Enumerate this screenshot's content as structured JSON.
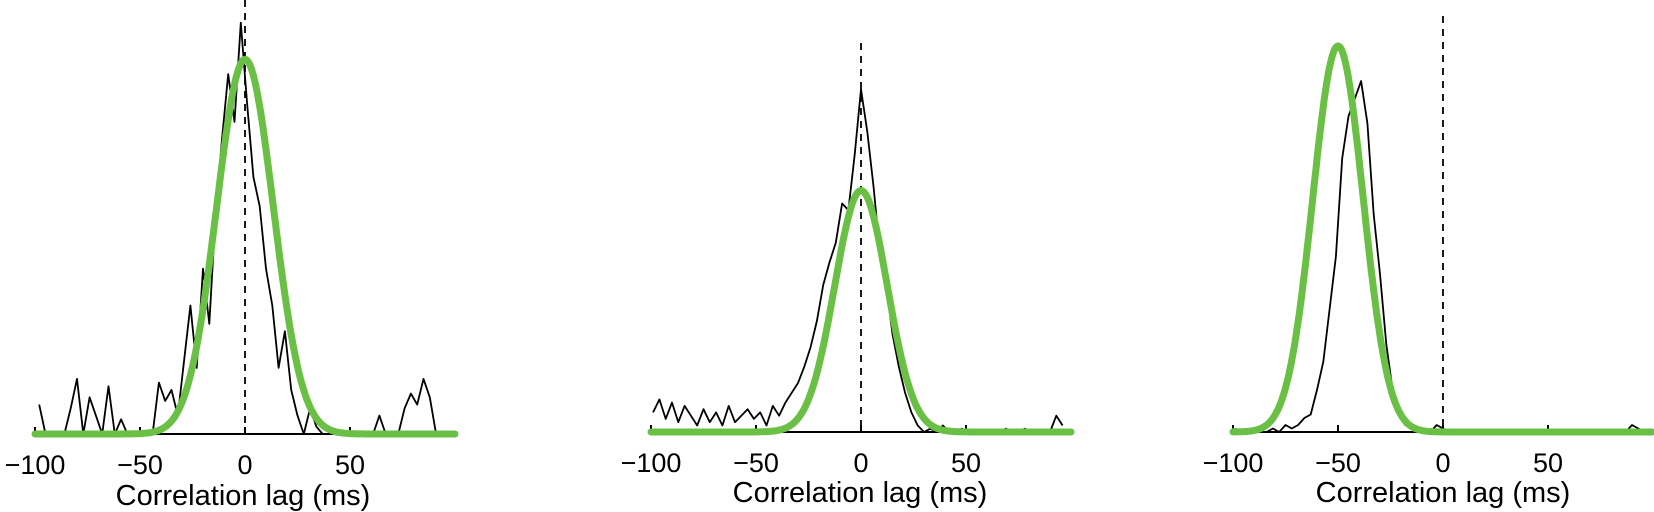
{
  "colors": {
    "histogram": "#000000",
    "fit": "#6abf45",
    "axis": "#000000",
    "zero_line": "#000000"
  },
  "chart_data": [
    {
      "type": "line",
      "title": "",
      "xlabel": "Correlation lag (ms)",
      "ylabel": "",
      "xlim": [
        -100,
        100
      ],
      "xticks": [
        -100,
        -50,
        0,
        50
      ],
      "xtick_labels": [
        "−100",
        "−50",
        "0",
        "50"
      ],
      "ylim": [
        0,
        1.1
      ],
      "zero_line": true,
      "series": [
        {
          "kind": "histogram",
          "x": [
            -98,
            -95,
            -92,
            -89,
            -86,
            -83,
            -80,
            -77,
            -74,
            -71,
            -68,
            -65,
            -62,
            -59,
            -56,
            -53,
            -50,
            -47,
            -44,
            -41,
            -38,
            -35,
            -32,
            -29,
            -26,
            -23,
            -20,
            -17,
            -14,
            -11,
            -8,
            -5,
            -2,
            1,
            4,
            7,
            10,
            13,
            16,
            19,
            22,
            25,
            28,
            31,
            34,
            37,
            40,
            43,
            46,
            49,
            52,
            55,
            58,
            61,
            64,
            67,
            70,
            73,
            76,
            79,
            82,
            85,
            88,
            91,
            94
          ],
          "values": [
            0.08,
            0.0,
            0.0,
            0.0,
            0.0,
            0.07,
            0.15,
            0.0,
            0.1,
            0.05,
            0.0,
            0.13,
            0.0,
            0.04,
            0.0,
            0.0,
            0.0,
            0.0,
            0.0,
            0.14,
            0.09,
            0.12,
            0.05,
            0.2,
            0.35,
            0.18,
            0.45,
            0.3,
            0.6,
            0.8,
            0.98,
            0.85,
            1.12,
            0.9,
            0.7,
            0.62,
            0.45,
            0.35,
            0.18,
            0.28,
            0.12,
            0.05,
            0.0,
            0.07,
            0.02,
            0.0,
            0.0,
            0.0,
            0.0,
            0.0,
            0.0,
            0.0,
            0.0,
            0.0,
            0.05,
            0.0,
            0.0,
            0.0,
            0.07,
            0.11,
            0.08,
            0.15,
            0.1,
            0.0,
            0.0
          ]
        },
        {
          "kind": "gaussian_fit",
          "mean": 0,
          "sd": 13.5,
          "amplitude": 1.02
        }
      ]
    },
    {
      "type": "line",
      "title": "",
      "xlabel": "Correlation lag (ms)",
      "ylabel": "",
      "xlim": [
        -100,
        100
      ],
      "xticks": [
        -100,
        -50,
        0,
        50
      ],
      "xtick_labels": [
        "−100",
        "−50",
        "0",
        "50"
      ],
      "ylim": [
        0,
        1.1
      ],
      "zero_line": true,
      "series": [
        {
          "kind": "histogram",
          "x": [
            -99,
            -96,
            -93,
            -90,
            -87,
            -84,
            -81,
            -78,
            -75,
            -72,
            -69,
            -66,
            -63,
            -60,
            -57,
            -54,
            -51,
            -48,
            -45,
            -42,
            -39,
            -36,
            -33,
            -30,
            -27,
            -24,
            -21,
            -18,
            -15,
            -12,
            -9,
            -6,
            -3,
            0,
            3,
            6,
            9,
            12,
            15,
            18,
            21,
            24,
            27,
            30,
            33,
            36,
            39,
            42,
            45,
            48,
            51,
            54,
            57,
            60,
            63,
            66,
            69,
            72,
            75,
            78,
            81,
            84,
            87,
            90,
            93,
            96
          ],
          "values": [
            0.06,
            0.1,
            0.04,
            0.09,
            0.03,
            0.08,
            0.05,
            0.02,
            0.07,
            0.03,
            0.06,
            0.02,
            0.08,
            0.03,
            0.05,
            0.07,
            0.04,
            0.06,
            0.02,
            0.08,
            0.05,
            0.09,
            0.12,
            0.15,
            0.2,
            0.26,
            0.34,
            0.45,
            0.52,
            0.58,
            0.7,
            0.68,
            0.85,
            1.05,
            0.92,
            0.75,
            0.55,
            0.45,
            0.3,
            0.2,
            0.12,
            0.06,
            0.02,
            0.0,
            0.01,
            0.0,
            0.02,
            0.0,
            0.0,
            0.01,
            0.0,
            0.0,
            0.0,
            0.0,
            0.0,
            0.0,
            0.01,
            0.0,
            0.0,
            0.01,
            0.0,
            0.0,
            0.0,
            0.0,
            0.05,
            0.02
          ]
        },
        {
          "kind": "gaussian_fit",
          "mean": 0,
          "sd": 12.5,
          "amplitude": 0.74
        }
      ]
    },
    {
      "type": "line",
      "title": "",
      "xlabel": "Correlation lag (ms)",
      "ylabel": "",
      "xlim": [
        -100,
        100
      ],
      "xticks": [
        -100,
        -50,
        0,
        50
      ],
      "xtick_labels": [
        "−100",
        "−50",
        "0",
        "50"
      ],
      "ylim": [
        0,
        1.1
      ],
      "zero_line": true,
      "series": [
        {
          "kind": "histogram",
          "x": [
            -99,
            -96,
            -93,
            -90,
            -87,
            -84,
            -81,
            -78,
            -75,
            -72,
            -69,
            -66,
            -63,
            -60,
            -57,
            -54,
            -51,
            -48,
            -45,
            -42,
            -39,
            -36,
            -33,
            -30,
            -27,
            -24,
            -21,
            -18,
            -15,
            -12,
            -9,
            -6,
            -3,
            0,
            3,
            6,
            9,
            12,
            15,
            18,
            21,
            24,
            27,
            30,
            33,
            36,
            39,
            42,
            45,
            48,
            51,
            54,
            57,
            60,
            63,
            66,
            69,
            72,
            75,
            78,
            81,
            84,
            87,
            90,
            93,
            96
          ],
          "values": [
            0.01,
            0.0,
            0.0,
            0.0,
            0.0,
            0.0,
            0.01,
            0.0,
            0.02,
            0.01,
            0.02,
            0.04,
            0.05,
            0.12,
            0.2,
            0.35,
            0.5,
            0.78,
            0.9,
            0.95,
            1.0,
            0.88,
            0.62,
            0.45,
            0.25,
            0.12,
            0.05,
            0.02,
            0.02,
            0.0,
            0.01,
            0.0,
            0.02,
            0.01,
            0.0,
            0.0,
            0.0,
            0.0,
            0.0,
            0.0,
            0.0,
            0.0,
            0.0,
            0.0,
            0.0,
            0.0,
            0.0,
            0.0,
            0.0,
            0.0,
            0.0,
            0.0,
            0.0,
            0.0,
            0.0,
            0.0,
            0.0,
            0.0,
            0.0,
            0.0,
            0.0,
            0.0,
            0.0,
            0.02,
            0.01,
            0.0
          ]
        },
        {
          "kind": "gaussian_fit",
          "mean": -50,
          "sd": 12,
          "amplitude": 1.1
        }
      ]
    }
  ]
}
